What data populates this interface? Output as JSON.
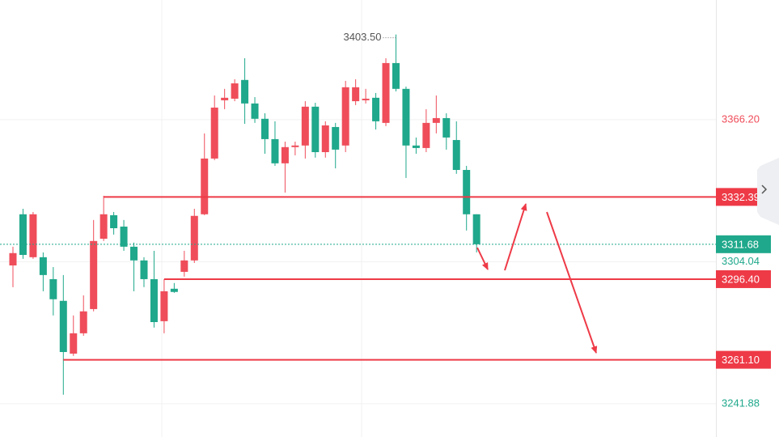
{
  "chart_data": {
    "type": "candlestick",
    "categories": [
      null,
      null,
      null,
      null,
      null,
      null,
      null,
      null,
      null,
      null,
      null,
      null,
      null,
      null,
      null,
      null,
      null,
      null,
      null,
      null,
      null,
      null,
      null,
      null,
      null,
      null,
      null,
      null,
      null,
      null,
      null,
      null,
      null,
      null,
      null,
      null,
      null,
      null,
      null,
      null,
      null,
      null,
      null,
      null,
      null,
      null,
      null
    ],
    "open": [
      3302.4,
      3324.8,
      3306.0,
      3306.0,
      3296.4,
      3286.9,
      3263.8,
      3272.7,
      3283.3,
      3314.1,
      3324.4,
      3319.4,
      3310.6,
      3304.6,
      3296.4,
      3278.0,
      3292.2,
      3299.6,
      3304.6,
      3324.8,
      3349.2,
      3374.7,
      3375.4,
      3383.6,
      3373.3,
      3366.6,
      3357.7,
      3347.1,
      3354.2,
      3354.9,
      3371.9,
      3352.0,
      3363.0,
      3354.9,
      3374.3,
      3374.7,
      3375.8,
      3364.8,
      3391.0,
      3379.7,
      3354.9,
      3353.8,
      3364.8,
      3366.9,
      3357.3,
      3344.2,
      3324.8
    ],
    "high": [
      3310.6,
      3327.2,
      3325.8,
      3308.1,
      3301.7,
      3298.2,
      3280.5,
      3289.3,
      3322.3,
      3332.9,
      3325.8,
      3322.3,
      3312.4,
      3306.0,
      3308.8,
      3296.4,
      3294.7,
      3308.8,
      3327.2,
      3360.2,
      3376.8,
      3379.7,
      3383.9,
      3393.1,
      3376.1,
      3369.0,
      3365.5,
      3356.6,
      3356.6,
      3374.3,
      3373.6,
      3365.5,
      3364.8,
      3383.2,
      3383.9,
      3379.7,
      3377.9,
      3393.1,
      3403.5,
      3380.7,
      3358.4,
      3370.8,
      3376.8,
      3369.0,
      3365.5,
      3346.0,
      3324.8
    ],
    "low": [
      3292.9,
      3305.3,
      3305.3,
      3291.1,
      3280.5,
      3245.8,
      3262.8,
      3271.6,
      3282.3,
      3313.1,
      3315.9,
      3308.8,
      3291.1,
      3292.9,
      3275.2,
      3272.7,
      3290.4,
      3297.5,
      3303.5,
      3324.4,
      3348.5,
      3370.8,
      3374.3,
      3364.4,
      3364.8,
      3351.3,
      3346.0,
      3334.3,
      3350.6,
      3349.2,
      3349.6,
      3349.6,
      3344.9,
      3352.0,
      3372.6,
      3373.3,
      3361.9,
      3363.4,
      3378.6,
      3340.7,
      3351.3,
      3352.0,
      3360.2,
      3353.1,
      3342.5,
      3317.7,
      3308.1
    ],
    "close": [
      3307.8,
      3307.0,
      3324.8,
      3298.2,
      3287.6,
      3264.5,
      3272.7,
      3282.3,
      3313.1,
      3324.8,
      3318.7,
      3310.6,
      3304.6,
      3296.4,
      3277.6,
      3291.1,
      3290.8,
      3304.6,
      3324.1,
      3349.2,
      3371.5,
      3375.8,
      3382.1,
      3373.3,
      3366.6,
      3357.7,
      3347.1,
      3354.2,
      3354.9,
      3371.9,
      3352.0,
      3363.7,
      3353.1,
      3380.4,
      3380.4,
      3375.4,
      3365.5,
      3391.0,
      3379.7,
      3354.9,
      3353.8,
      3364.8,
      3366.9,
      3358.4,
      3344.2,
      3324.8,
      3311.68
    ],
    "up_color": "#ef4d5a",
    "down_color": "#1fa88b",
    "ylim": [
      3227.3,
      3418.6
    ],
    "yticks": [
      {
        "value": 3366.2,
        "label": "3366.20",
        "color": "#ef4d5a"
      },
      {
        "value": 3304.04,
        "label": "3304.04",
        "color": "#1fa88b"
      },
      {
        "value": 3241.88,
        "label": "3241.88",
        "color": "#1fa88b"
      }
    ],
    "grid": true,
    "high_label": "3403.50",
    "last_price": 3311.68,
    "levels": [
      {
        "value": 3332.39,
        "label": "3332.39",
        "from": 9
      },
      {
        "value": 3296.4,
        "label": "3296.40",
        "from": 15
      },
      {
        "value": 3261.1,
        "label": "3261.10",
        "from": 5
      }
    ],
    "level_color": "#ee3a47"
  }
}
